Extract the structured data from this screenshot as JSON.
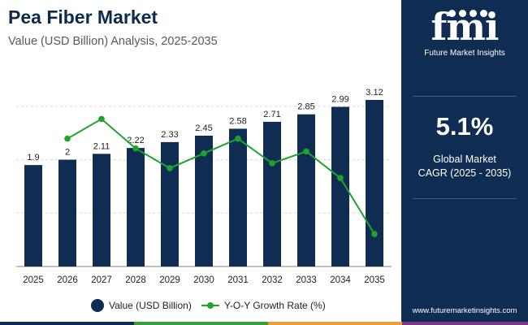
{
  "header": {
    "title": "Pea Fiber Market",
    "subtitle": "Value (USD Billion) Analysis, 2025-2035"
  },
  "chart_data": {
    "type": "bar",
    "categories": [
      "2025",
      "2026",
      "2027",
      "2028",
      "2029",
      "2030",
      "2031",
      "2032",
      "2033",
      "2034",
      "2035"
    ],
    "series": [
      {
        "name": "Value (USD Billion)",
        "type": "bar",
        "color": "#0f2c52",
        "values": [
          1.9,
          2,
          2.11,
          2.22,
          2.33,
          2.45,
          2.58,
          2.71,
          2.85,
          2.99,
          3.12
        ],
        "labels": [
          "1.9",
          "2",
          "2.11",
          "2.22",
          "2.33",
          "2.45",
          "2.58",
          "2.71",
          "2.85",
          "2.99",
          "3.12"
        ]
      },
      {
        "name": "Y-O-Y Growth Rate (%)",
        "type": "line",
        "color": "#1fa32e",
        "values": [
          null,
          5.3,
          5.5,
          5.2,
          5.0,
          5.15,
          5.3,
          5.05,
          5.17,
          4.9,
          4.33
        ]
      }
    ],
    "ylim": [
      0,
      3.5
    ],
    "ylim_secondary": [
      4.0,
      5.9
    ],
    "grid": true,
    "legend": "bottom-center"
  },
  "sidebar": {
    "logo_text": "fmi",
    "logo_caption": "Future Market Insights",
    "cagr_value": "5.1%",
    "cagr_label_1": "Global Market",
    "cagr_label_2": "CAGR (2025 - 2035)",
    "url": "www.futuremarketinsights.com"
  },
  "legend": {
    "bar_label": "Value (USD Billion)",
    "line_label": "Y-O-Y Growth Rate (%)"
  },
  "colors": {
    "bar": "#0f2c52",
    "line": "#1fa32e",
    "sidebar": "#0f2c52",
    "accent_strip": [
      "#0f2c52",
      "#3a9c3c",
      "#e8a13a",
      "#7a3a8a"
    ]
  }
}
